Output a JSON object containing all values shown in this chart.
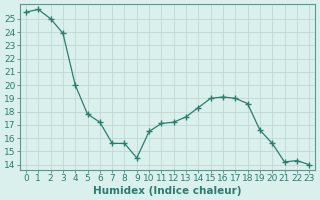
{
  "x": [
    0,
    1,
    2,
    3,
    4,
    5,
    6,
    7,
    8,
    9,
    10,
    11,
    12,
    13,
    14,
    15,
    16,
    17,
    18,
    19,
    20,
    21,
    22,
    23
  ],
  "y": [
    25.5,
    25.7,
    25.0,
    23.9,
    20.0,
    17.8,
    17.2,
    15.6,
    15.6,
    14.5,
    16.5,
    17.1,
    17.2,
    17.6,
    18.3,
    19.0,
    19.1,
    19.0,
    18.6,
    16.6,
    15.6,
    14.2,
    14.3,
    14.0
  ],
  "line_color": "#2d7d6e",
  "marker": "+",
  "marker_size": 4,
  "marker_lw": 1.0,
  "line_width": 0.9,
  "xlabel": "Humidex (Indice chaleur)",
  "ytick_labels": [
    "14",
    "15",
    "16",
    "17",
    "18",
    "19",
    "20",
    "21",
    "22",
    "23",
    "24",
    "25"
  ],
  "ytick_vals": [
    14,
    15,
    16,
    17,
    18,
    19,
    20,
    21,
    22,
    23,
    24,
    25
  ],
  "ylim_min": 13.6,
  "ylim_max": 26.1,
  "xlim_min": -0.5,
  "xlim_max": 23.5,
  "bg_color": "#d9f0ed",
  "grid_color": "#c0d8d4",
  "spine_color": "#5a9990",
  "tick_color": "#2d7d6e",
  "xlabel_fontsize": 7.5,
  "tick_fontsize": 6.5,
  "figw": 3.2,
  "figh": 2.0,
  "dpi": 100
}
